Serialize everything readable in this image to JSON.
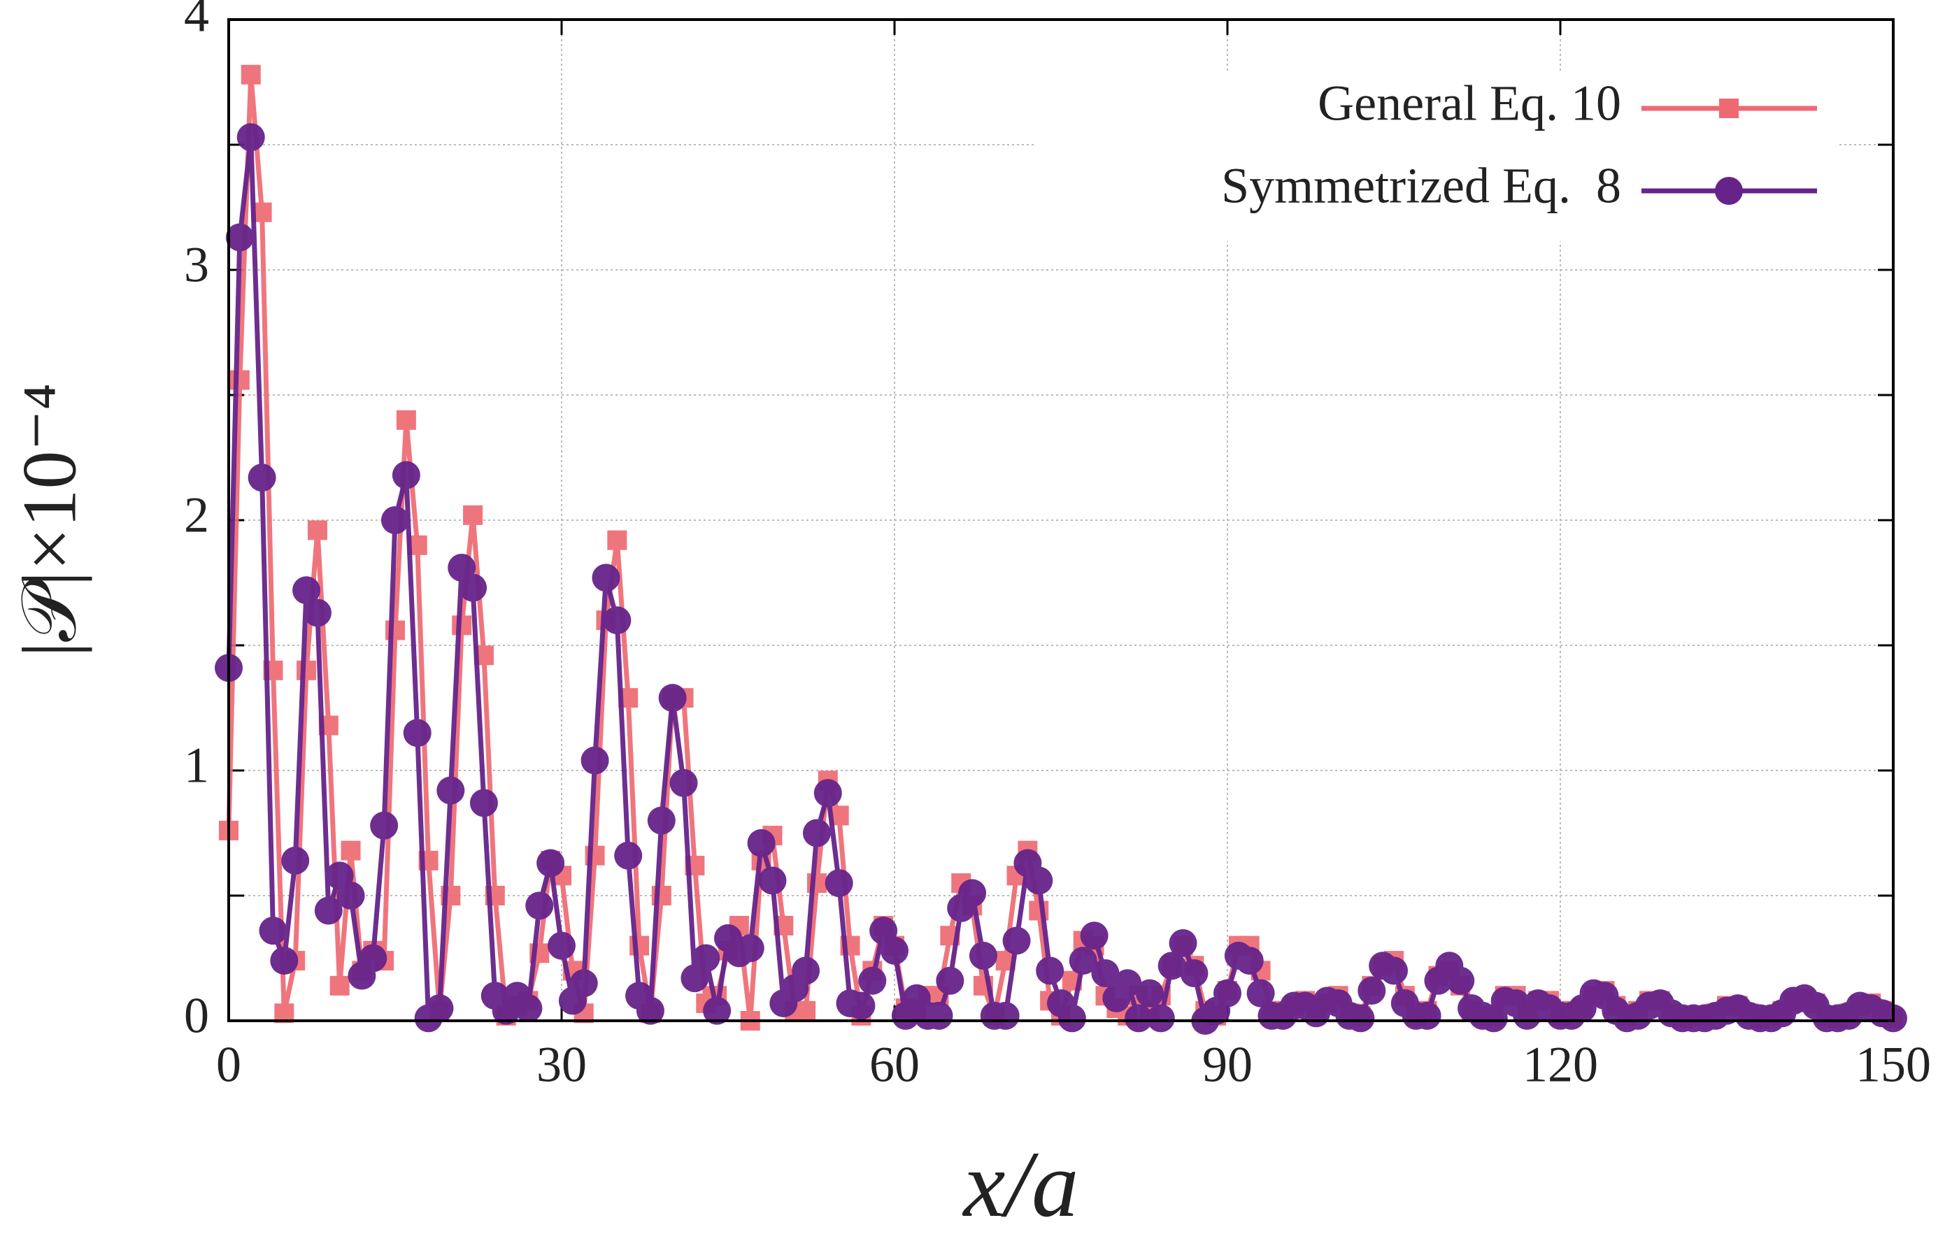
{
  "chart_data": {
    "type": "line",
    "xlabel": "x/a",
    "ylabel": "|𝒫|×10⁻⁴",
    "x": [
      0,
      1,
      2,
      3,
      4,
      5,
      6,
      7,
      8,
      9,
      10,
      11,
      12,
      13,
      14,
      15,
      16,
      17,
      18,
      19,
      20,
      21,
      22,
      23,
      24,
      25,
      26,
      27,
      28,
      29,
      30,
      31,
      32,
      33,
      34,
      35,
      36,
      37,
      38,
      39,
      40,
      41,
      42,
      43,
      44,
      45,
      46,
      47,
      48,
      49,
      50,
      51,
      52,
      53,
      54,
      55,
      56,
      57,
      58,
      59,
      60,
      61,
      62,
      63,
      64,
      65,
      66,
      67,
      68,
      69,
      70,
      71,
      72,
      73,
      74,
      75,
      76,
      77,
      78,
      79,
      80,
      81,
      82,
      83,
      84,
      85,
      86,
      87,
      88,
      89,
      90,
      91,
      92,
      93,
      94,
      95,
      96,
      97,
      98,
      99,
      100,
      101,
      102,
      103,
      104,
      105,
      106,
      107,
      108,
      109,
      110,
      111,
      112,
      113,
      114,
      115,
      116,
      117,
      118,
      119,
      120,
      121,
      122,
      123,
      124,
      125,
      126,
      127,
      128,
      129,
      130,
      131,
      132,
      133,
      134,
      135,
      136,
      137,
      138,
      139,
      140,
      141,
      142,
      143,
      144,
      145,
      146,
      147,
      148,
      149,
      150
    ],
    "series": [
      {
        "name": "General Eq. 10",
        "color": "#ee6a72",
        "marker": "square",
        "values": [
          0.76,
          2.56,
          3.78,
          3.23,
          1.4,
          0.03,
          0.24,
          1.4,
          1.96,
          1.18,
          0.14,
          0.68,
          0.2,
          0.28,
          0.24,
          1.56,
          2.4,
          1.9,
          0.64,
          0.04,
          0.5,
          1.58,
          2.02,
          1.46,
          0.5,
          0.02,
          0.06,
          0.08,
          0.27,
          0.64,
          0.58,
          0.2,
          0.03,
          0.66,
          1.6,
          1.92,
          1.29,
          0.3,
          0.03,
          0.5,
          1.29,
          1.29,
          0.62,
          0.07,
          0.1,
          0.28,
          0.38,
          0.0,
          0.64,
          0.74,
          0.38,
          0.04,
          0.04,
          0.55,
          0.96,
          0.82,
          0.3,
          0.02,
          0.2,
          0.38,
          0.3,
          0.05,
          0.04,
          0.1,
          0.1,
          0.34,
          0.55,
          0.46,
          0.14,
          0.02,
          0.24,
          0.58,
          0.68,
          0.44,
          0.08,
          0.02,
          0.16,
          0.32,
          0.3,
          0.1,
          0.05,
          0.02,
          0.1,
          0.04,
          0.1,
          0.22,
          0.3,
          0.22,
          0.04,
          0.02,
          0.12,
          0.3,
          0.3,
          0.2,
          0.04,
          0.03,
          0.06,
          0.08,
          0.05,
          0.07,
          0.1,
          0.03,
          0.02,
          0.14,
          0.22,
          0.24,
          0.1,
          0.02,
          0.04,
          0.18,
          0.2,
          0.14,
          0.04,
          0.02,
          0.02,
          0.1,
          0.1,
          0.04,
          0.08,
          0.08,
          0.02,
          0.04,
          0.05,
          0.1,
          0.12,
          0.06,
          0.02,
          0.04,
          0.08,
          0.08,
          0.03,
          0.01,
          0.02,
          0.02,
          0.03,
          0.06,
          0.06,
          0.03,
          0.01,
          0.02,
          0.04,
          0.08,
          0.09,
          0.07,
          0.02,
          0.01,
          0.03,
          0.06,
          0.07,
          0.04,
          0.01
        ]
      },
      {
        "name": "Symmetrized Eq.  8",
        "color": "#66238a",
        "marker": "circle",
        "values": [
          1.41,
          3.13,
          3.53,
          2.17,
          0.36,
          0.24,
          0.64,
          1.72,
          1.63,
          0.44,
          0.58,
          0.5,
          0.18,
          0.25,
          0.78,
          2.0,
          2.18,
          1.15,
          0.01,
          0.05,
          0.92,
          1.81,
          1.73,
          0.87,
          0.1,
          0.04,
          0.1,
          0.05,
          0.46,
          0.63,
          0.3,
          0.08,
          0.15,
          1.04,
          1.77,
          1.6,
          0.66,
          0.1,
          0.04,
          0.8,
          1.29,
          0.95,
          0.17,
          0.25,
          0.04,
          0.33,
          0.27,
          0.29,
          0.71,
          0.56,
          0.07,
          0.13,
          0.2,
          0.75,
          0.91,
          0.55,
          0.07,
          0.06,
          0.16,
          0.36,
          0.28,
          0.02,
          0.09,
          0.02,
          0.02,
          0.16,
          0.45,
          0.51,
          0.26,
          0.02,
          0.02,
          0.32,
          0.63,
          0.56,
          0.2,
          0.07,
          0.01,
          0.24,
          0.34,
          0.19,
          0.09,
          0.15,
          0.01,
          0.11,
          0.01,
          0.22,
          0.31,
          0.19,
          0.0,
          0.04,
          0.11,
          0.26,
          0.24,
          0.11,
          0.02,
          0.02,
          0.06,
          0.06,
          0.03,
          0.08,
          0.07,
          0.02,
          0.01,
          0.12,
          0.22,
          0.2,
          0.07,
          0.02,
          0.02,
          0.16,
          0.22,
          0.16,
          0.05,
          0.02,
          0.01,
          0.08,
          0.07,
          0.02,
          0.07,
          0.05,
          0.02,
          0.02,
          0.05,
          0.11,
          0.1,
          0.04,
          0.01,
          0.02,
          0.06,
          0.07,
          0.03,
          0.01,
          0.01,
          0.01,
          0.02,
          0.04,
          0.05,
          0.02,
          0.01,
          0.01,
          0.03,
          0.08,
          0.09,
          0.06,
          0.01,
          0.01,
          0.02,
          0.06,
          0.05,
          0.03,
          0.01
        ]
      }
    ],
    "xlim": [
      0,
      150
    ],
    "xticks": [
      0,
      30,
      60,
      90,
      120,
      150
    ],
    "ylim": [
      0,
      4
    ],
    "yticks": [
      0,
      1,
      2,
      3,
      4
    ],
    "minor_yticks": [
      0.5,
      1.5,
      2.5,
      3.5
    ],
    "grid": true,
    "legend": "upper right"
  }
}
